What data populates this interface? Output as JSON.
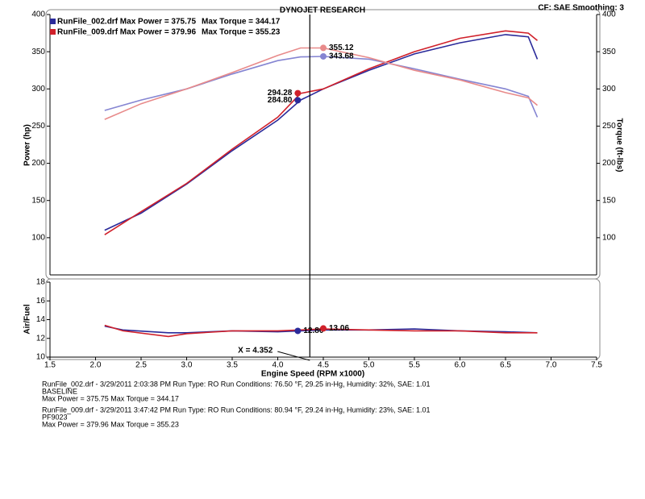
{
  "header": {
    "title": "DYNOJET RESEARCH",
    "settings": "CF: SAE  Smoothing: 3"
  },
  "cursor": {
    "value": 4.352,
    "label": "X = 4.352"
  },
  "chart_data": [
    {
      "type": "line",
      "ylabel": "Power (hp)",
      "y2label": "Torque (ft-lbs)",
      "xlim": [
        1.5,
        7.5
      ],
      "ylim": [
        50,
        400
      ],
      "yticks": [
        100,
        150,
        200,
        250,
        300,
        350,
        400
      ],
      "y2lim": [
        50,
        400
      ],
      "y2ticks": [
        100,
        150,
        200,
        250,
        300,
        350,
        400
      ],
      "x": [
        2.1,
        2.5,
        3.0,
        3.5,
        4.0,
        4.25,
        4.5,
        5.0,
        5.5,
        6.0,
        6.5,
        6.75,
        6.85
      ],
      "series": [
        {
          "name": "RunFile_002.drf Max Power = 375.75",
          "color": "#2a2a9a",
          "values": [
            110,
            133,
            172,
            217,
            258,
            285,
            300,
            325,
            347,
            362,
            373,
            370,
            340
          ]
        },
        {
          "name": "RunFile_009.drf Max Power = 379.96",
          "color": "#d0202a",
          "values": [
            104,
            135,
            173,
            219,
            262,
            294,
            300,
            327,
            350,
            368,
            378,
            375,
            365
          ]
        },
        {
          "name": "Max Torque = 344.17",
          "color": "#8585d2",
          "axis": "y2",
          "values": [
            271,
            285,
            300,
            320,
            338,
            343,
            343.7,
            340,
            327,
            313,
            300,
            290,
            262
          ]
        },
        {
          "name": "Max Torque = 355.23",
          "color": "#e88a8a",
          "axis": "y2",
          "values": [
            259,
            280,
            300,
            322,
            345,
            355,
            355,
            342,
            325,
            312,
            295,
            288,
            278
          ]
        }
      ],
      "markers": [
        {
          "x": 4.22,
          "value": 294.28,
          "label": "294.28",
          "color": "#d0202a"
        },
        {
          "x": 4.22,
          "value": 284.8,
          "label": "284.80",
          "color": "#2a2a9a"
        },
        {
          "x": 4.5,
          "value": 355.12,
          "label": "355.12",
          "color": "#e88a8a",
          "axis": "y2"
        },
        {
          "x": 4.5,
          "value": 343.68,
          "label": "343.68",
          "color": "#8585d2",
          "axis": "y2"
        }
      ]
    },
    {
      "type": "line",
      "ylabel": "Air/Fuel",
      "xlabel": "Engine Speed (RPM x1000)",
      "xlim": [
        1.5,
        7.5
      ],
      "xticks": [
        1.5,
        {
          "value": 2,
          "label": "2.0"
        },
        2.5,
        {
          "value": 3,
          "label": "3.0"
        },
        3.5,
        {
          "value": 4,
          "label": "4.0"
        },
        4.5,
        {
          "value": 5,
          "label": "5.0"
        },
        5.5,
        {
          "value": 6,
          "label": "6.0"
        },
        6.5,
        {
          "value": 7,
          "label": "7.0"
        },
        7.5
      ],
      "ylim": [
        10,
        18
      ],
      "yticks": [
        10,
        12,
        14,
        16,
        18
      ],
      "x": [
        2.1,
        2.3,
        2.8,
        3.0,
        3.5,
        4.0,
        4.5,
        5.0,
        5.5,
        6.0,
        6.5,
        6.85
      ],
      "series": [
        {
          "name": "RunFile_002.drf",
          "color": "#2a2a9a",
          "values": [
            13.3,
            12.9,
            12.6,
            12.6,
            12.8,
            12.7,
            12.9,
            12.9,
            13.0,
            12.8,
            12.7,
            12.6
          ]
        },
        {
          "name": "RunFile_009.drf",
          "color": "#d0202a",
          "values": [
            13.4,
            12.8,
            12.2,
            12.5,
            12.8,
            12.8,
            13.0,
            12.9,
            12.8,
            12.8,
            12.6,
            12.6
          ]
        }
      ],
      "markers": [
        {
          "x": 4.22,
          "value": 12.8,
          "label": "12.80",
          "color": "#2a2a9a"
        },
        {
          "x": 4.5,
          "value": 13.06,
          "label": "13.06",
          "color": "#d0202a"
        }
      ]
    }
  ],
  "notes": [
    {
      "color": "#2a2a9a",
      "lines": [
        "RunFile_002.drf - 3/29/2011 2:03:38 PM  Run Type: RO  Run Conditions: 76.50 °F, 29.25 in-Hg,  Humidity: 32%, SAE: 1.01",
        "BASELINE",
        "Max Power = 375.75  Max Torque = 344.17"
      ]
    },
    {
      "color": "#d0202a",
      "lines": [
        "RunFile_009.drf - 3/29/2011 3:47:42 PM  Run Type: RO  Run Conditions: 80.94 °F, 29.24 in-Hg,  Humidity: 23%, SAE: 1.01",
        "PF9023",
        "Max Power = 379.96  Max Torque = 355.23"
      ]
    }
  ]
}
